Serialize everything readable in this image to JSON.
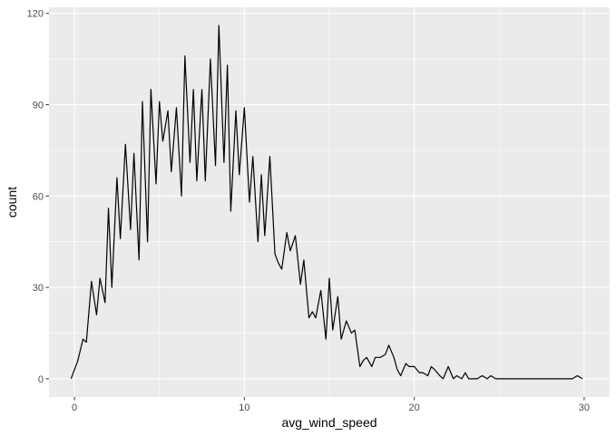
{
  "chart_data": {
    "type": "line",
    "title": "",
    "xlabel": "avg_wind_speed",
    "ylabel": "count",
    "xlim": [
      -1.5,
      31.5
    ],
    "ylim": [
      -6,
      122
    ],
    "x_ticks": [
      0,
      10,
      20,
      30
    ],
    "y_ticks": [
      0,
      30,
      60,
      90,
      120
    ],
    "grid": true,
    "legend": "none",
    "colors": {
      "panel_background": "#ebebeb",
      "grid_major": "#ffffff",
      "line": "#000000"
    },
    "series": [
      {
        "x": [
          -0.2,
          0.2,
          0.5,
          0.7,
          1.0,
          1.3,
          1.5,
          1.8,
          2.0,
          2.2,
          2.5,
          2.7,
          3.0,
          3.3,
          3.5,
          3.8,
          4.0,
          4.3,
          4.5,
          4.8,
          5.0,
          5.2,
          5.5,
          5.7,
          6.0,
          6.3,
          6.5,
          6.8,
          7.0,
          7.2,
          7.5,
          7.7,
          8.0,
          8.3,
          8.5,
          8.8,
          9.0,
          9.2,
          9.5,
          9.7,
          10.0,
          10.3,
          10.5,
          10.8,
          11.0,
          11.2,
          11.5,
          11.8,
          12.0,
          12.2,
          12.5,
          12.7,
          13.0,
          13.3,
          13.5,
          13.8,
          14.0,
          14.2,
          14.5,
          14.8,
          15.0,
          15.2,
          15.5,
          15.7,
          16.0,
          16.3,
          16.5,
          16.8,
          17.0,
          17.2,
          17.5,
          17.7,
          18.0,
          18.3,
          18.5,
          18.8,
          19.0,
          19.2,
          19.5,
          19.7,
          20.0,
          20.3,
          20.5,
          20.8,
          21.0,
          21.2,
          21.5,
          21.7,
          22.0,
          22.3,
          22.5,
          22.8,
          23.0,
          23.2,
          23.5,
          23.7,
          24.0,
          24.3,
          24.5,
          24.8,
          25.0,
          25.3,
          25.5,
          25.8,
          26.0,
          26.3,
          26.5,
          26.8,
          27.0,
          27.3,
          27.5,
          27.8,
          28.0,
          28.3,
          28.5,
          28.8,
          29.0,
          29.3,
          29.6,
          29.9
        ],
        "y": [
          0,
          6,
          13,
          12,
          32,
          21,
          33,
          25,
          56,
          30,
          66,
          46,
          77,
          49,
          74,
          39,
          91,
          45,
          95,
          64,
          91,
          78,
          88,
          68,
          89,
          60,
          106,
          71,
          95,
          65,
          95,
          65,
          105,
          70,
          116,
          71,
          103,
          55,
          88,
          67,
          89,
          58,
          73,
          45,
          67,
          47,
          73,
          41,
          38,
          36,
          48,
          42,
          47,
          31,
          39,
          20,
          22,
          20,
          29,
          13,
          33,
          16,
          27,
          13,
          19,
          15,
          16,
          4,
          6,
          7,
          4,
          7,
          7,
          8,
          11,
          7,
          3,
          1,
          5,
          4,
          4,
          2,
          2,
          1,
          4,
          3,
          1,
          0,
          4,
          0,
          1,
          0,
          2,
          0,
          0,
          0,
          1,
          0,
          1,
          0,
          0,
          0,
          0,
          0,
          0,
          0,
          0,
          0,
          0,
          0,
          0,
          0,
          0,
          0,
          0,
          0,
          0,
          0,
          1,
          0
        ]
      }
    ]
  }
}
